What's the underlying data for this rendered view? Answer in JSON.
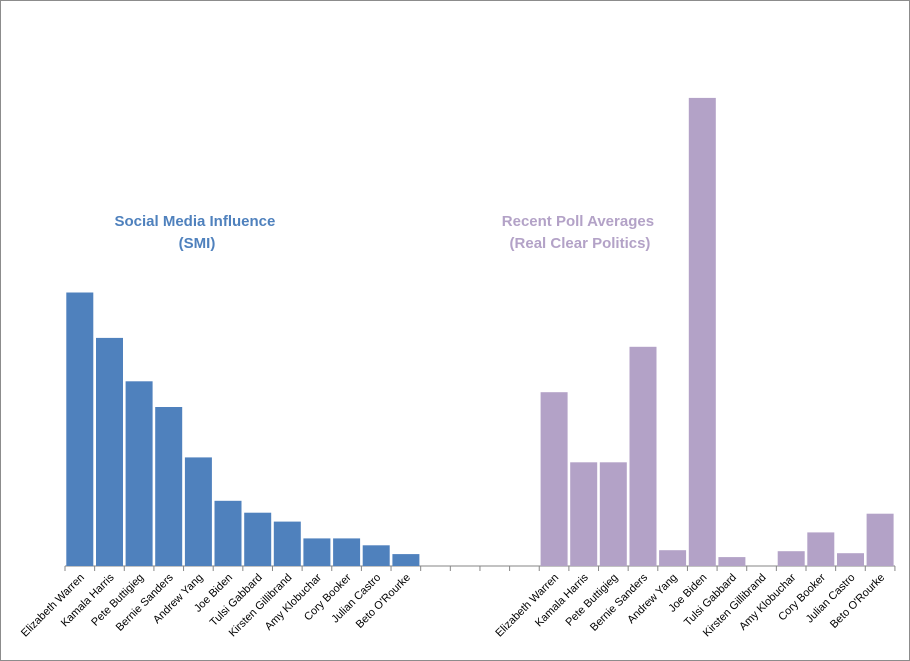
{
  "chart_data": {
    "type": "bar",
    "categories": [
      "Elizabeth Warren",
      "Kamala Harris",
      "Pete Buttigieg",
      "Bernie Sanders",
      "Andrew Yang",
      "Joe Biden",
      "Tulsi Gabbard",
      "Kirsten Gillibrand",
      "Amy Klobuchar",
      "Cory Booker",
      "Julian Castro",
      "Beto O'Rourke"
    ],
    "series": [
      {
        "name_lines": [
          "Social Media Influence",
          "(SMI)"
        ],
        "color": "#4f81bd",
        "values": [
          277,
          231,
          187,
          161,
          110,
          66,
          54,
          45,
          28,
          28,
          21,
          12
        ]
      },
      {
        "name_lines": [
          "Recent Poll Averages",
          "(Real Clear Politics)"
        ],
        "color": "#b3a2c7",
        "values": [
          176,
          105,
          105,
          222,
          16,
          474,
          9,
          0,
          15,
          34,
          13,
          53
        ]
      }
    ],
    "ylim": [
      0,
      480
    ],
    "grid": false,
    "legend": "none"
  }
}
